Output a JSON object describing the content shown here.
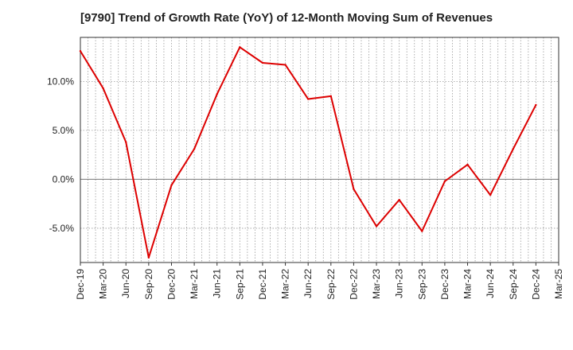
{
  "chart_data": {
    "type": "line",
    "title": "[9790]  Trend of Growth Rate (YoY) of 12-Month Moving Sum of Revenues",
    "xlabel": "",
    "ylabel": "",
    "ylim": [
      -8.5,
      14.5
    ],
    "yticks": [
      -5.0,
      0.0,
      5.0,
      10.0
    ],
    "ytick_labels": [
      "-5.0%",
      "0.0%",
      "5.0%",
      "10.0%"
    ],
    "x": [
      "Dec-19",
      "Mar-20",
      "Jun-20",
      "Sep-20",
      "Dec-20",
      "Mar-21",
      "Jun-21",
      "Sep-21",
      "Dec-21",
      "Mar-22",
      "Jun-22",
      "Sep-22",
      "Dec-22",
      "Mar-23",
      "Jun-23",
      "Sep-23",
      "Dec-23",
      "Mar-24",
      "Jun-24",
      "Sep-24",
      "Dec-24",
      "Mar-25"
    ],
    "series": [
      {
        "name": "",
        "color": "#dd0000",
        "values": [
          13.1,
          9.3,
          3.8,
          -8.0,
          -0.6,
          3.1,
          8.7,
          13.5,
          11.9,
          11.7,
          8.2,
          8.5,
          -1.0,
          -4.8,
          -2.1,
          -5.3,
          -0.2,
          1.5,
          -1.6,
          3.1,
          7.6,
          null
        ]
      }
    ],
    "grid": true,
    "zero_line": true,
    "legend": "none"
  }
}
